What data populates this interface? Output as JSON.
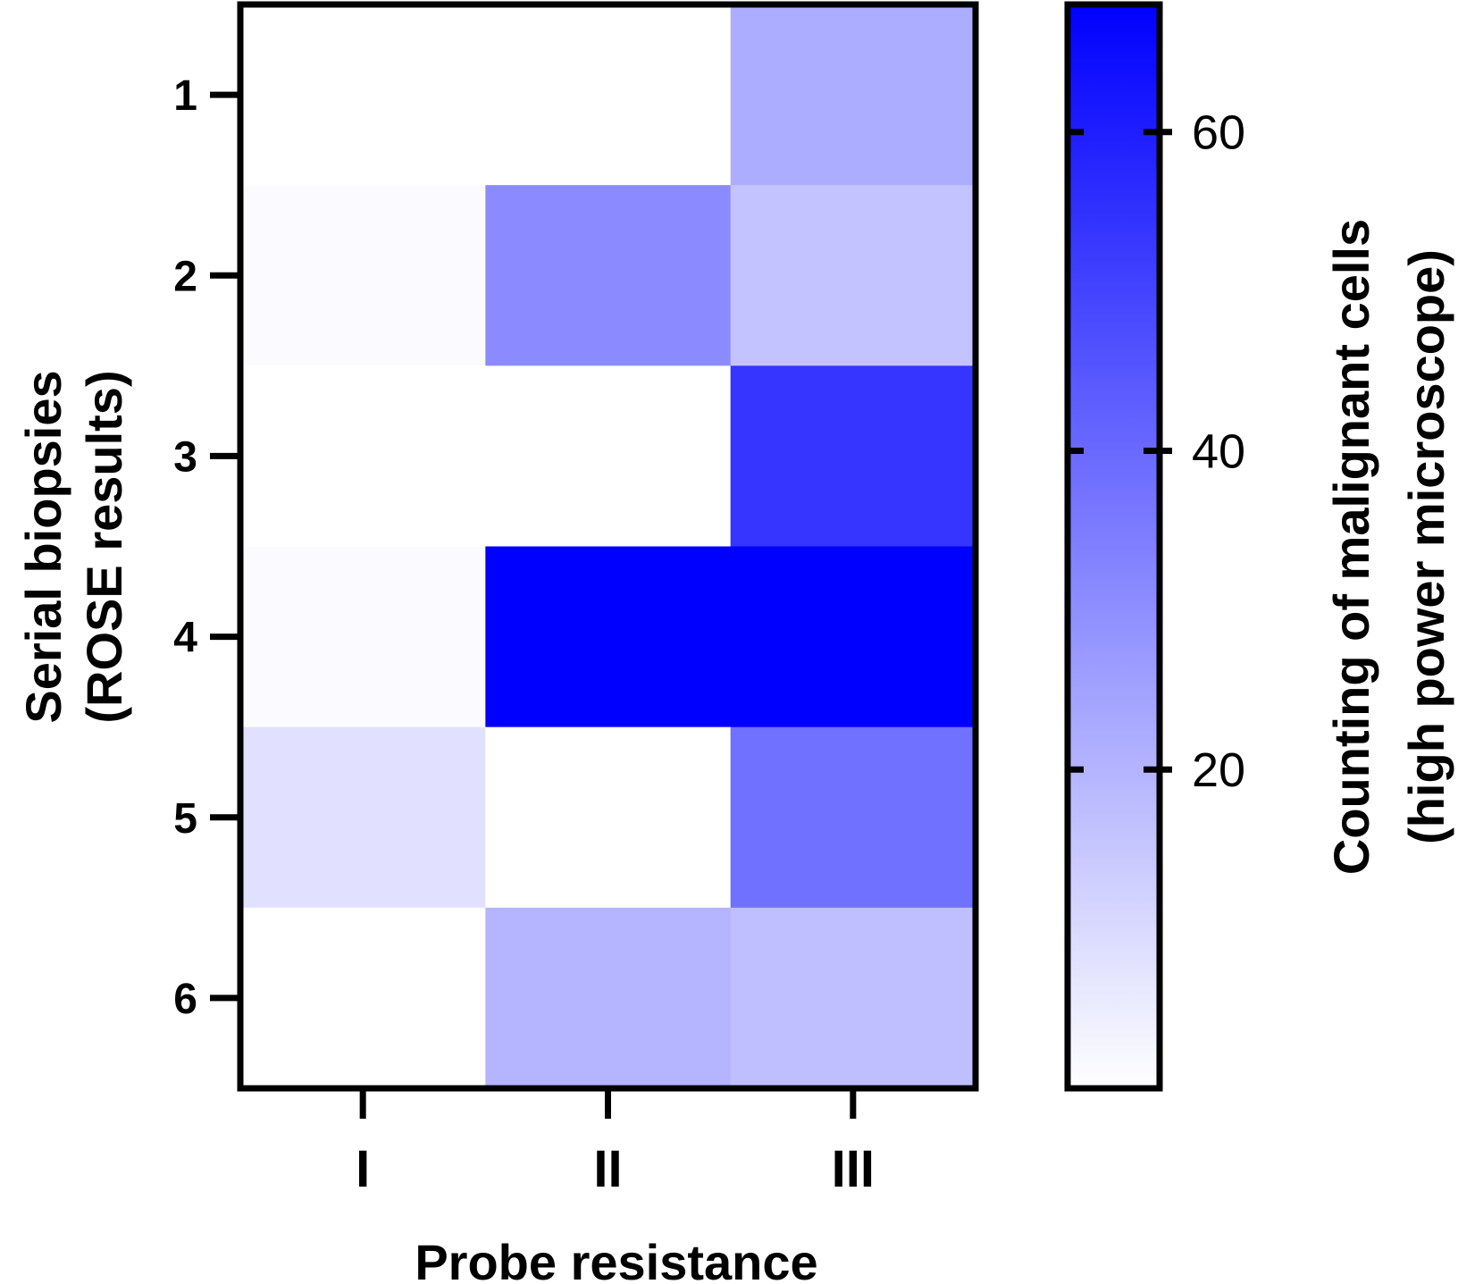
{
  "chart_data": {
    "type": "heatmap",
    "x_categories": [
      "I",
      "II",
      "III"
    ],
    "y_categories": [
      "1",
      "2",
      "3",
      "4",
      "5",
      "6"
    ],
    "values": [
      [
        0,
        0,
        22
      ],
      [
        1,
        31,
        16
      ],
      [
        0,
        0,
        54
      ],
      [
        1,
        68,
        68
      ],
      [
        8,
        0,
        38
      ],
      [
        0,
        20,
        17
      ]
    ],
    "xlabel": "Probe resistance",
    "ylabel": [
      "Serial biopsies",
      "(ROSE results)"
    ],
    "colorbar": {
      "label": [
        "Counting of malignant cells",
        "(high power microscope)"
      ],
      "range": [
        0,
        68
      ],
      "ticks": [
        20,
        40,
        60
      ],
      "tick_labels": [
        "20",
        "40",
        "60"
      ],
      "color_low": "#ffffff",
      "color_high": "#0000ff"
    }
  }
}
